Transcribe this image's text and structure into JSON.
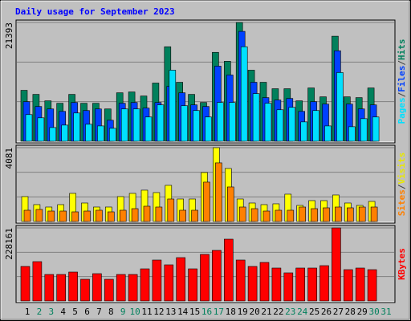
{
  "chart_data": [
    {
      "type": "bar",
      "title": "Daily usage for September 2023",
      "legend_separator": "/",
      "ylim": [
        0,
        21393
      ],
      "yticks": [
        21393
      ],
      "series": [
        {
          "name": "Hits",
          "color": "#00805c",
          "values": [
            9170,
            8440,
            7280,
            6840,
            8440,
            6840,
            6840,
            5820,
            8730,
            8880,
            8150,
            10480,
            17020,
            10620,
            8440,
            6980,
            16010,
            14400,
            21393,
            12800,
            10620,
            9460,
            9460,
            7280,
            9600,
            8000,
            18920,
            8000,
            7860,
            9600,
            null
          ]
        },
        {
          "name": "Files",
          "color": "#0040ff",
          "values": [
            7130,
            6260,
            5820,
            5380,
            6980,
            5530,
            5820,
            3780,
            6840,
            6980,
            5970,
            6980,
            9890,
            8730,
            6550,
            6260,
            13530,
            11930,
            19790,
            10620,
            7860,
            7420,
            7710,
            5380,
            7130,
            6690,
            16300,
            6690,
            5820,
            6550,
            null
          ]
        },
        {
          "name": "Pages",
          "color": "#00e0ff",
          "values": [
            4800,
            4220,
            2470,
            2910,
            5090,
            3060,
            2760,
            2330,
            5820,
            5820,
            4370,
            6550,
            12800,
            6400,
            5530,
            4370,
            6980,
            6980,
            17020,
            8580,
            6840,
            5670,
            6110,
            3490,
            5530,
            2760,
            12370,
            2620,
            4070,
            4370,
            null
          ]
        }
      ]
    },
    {
      "type": "bar",
      "legend_separator": "/",
      "ylim": [
        0,
        4081
      ],
      "yticks": [
        4081
      ],
      "series": [
        {
          "name": "Visits",
          "color": "#ffff00",
          "values": [
            1376,
            932,
            799,
            932,
            1554,
            1021,
            799,
            799,
            1376,
            1554,
            1732,
            1598,
            1998,
            1243,
            1243,
            2708,
            4081,
            2930,
            1243,
            1021,
            932,
            977,
            1510,
            888,
            1154,
            1154,
            1465,
            1021,
            888,
            1110,
            null
          ]
        },
        {
          "name": "Sites",
          "color": "#ff8000",
          "values": [
            622,
            666,
            577,
            577,
            533,
            577,
            622,
            533,
            622,
            710,
            844,
            799,
            1243,
            622,
            622,
            2176,
            3241,
            1909,
            799,
            710,
            577,
            622,
            622,
            799,
            710,
            755,
            799,
            755,
            799,
            799,
            null
          ]
        }
      ]
    },
    {
      "type": "bar",
      "ylim": [
        0,
        228161
      ],
      "yticks": [
        228161
      ],
      "categories": [
        "1",
        "2",
        "3",
        "4",
        "5",
        "6",
        "7",
        "8",
        "9",
        "10",
        "11",
        "12",
        "13",
        "14",
        "15",
        "16",
        "17",
        "18",
        "19",
        "20",
        "21",
        "22",
        "23",
        "24",
        "25",
        "26",
        "27",
        "28",
        "29",
        "30",
        "31"
      ],
      "category_colors": [
        "#000000",
        "#00805c",
        "#00805c",
        "#000000",
        "#000000",
        "#000000",
        "#000000",
        "#000000",
        "#00805c",
        "#00805c",
        "#000000",
        "#000000",
        "#000000",
        "#000000",
        "#000000",
        "#00805c",
        "#00805c",
        "#000000",
        "#000000",
        "#000000",
        "#000000",
        "#000000",
        "#00805c",
        "#00805c",
        "#000000",
        "#000000",
        "#000000",
        "#000000",
        "#000000",
        "#00805c",
        "#00805c"
      ],
      "series": [
        {
          "name": "KBytes",
          "color": "#ff0000",
          "values": [
            107800,
            122840,
            82730,
            82730,
            90250,
            67690,
            85240,
            67690,
            82730,
            82730,
            100280,
            127860,
            112820,
            135380,
            100280,
            145410,
            157940,
            193040,
            127860,
            107800,
            120340,
            102790,
            87750,
            102790,
            102790,
            110310,
            228161,
            97770,
            102790,
            97770,
            null
          ]
        }
      ]
    }
  ]
}
